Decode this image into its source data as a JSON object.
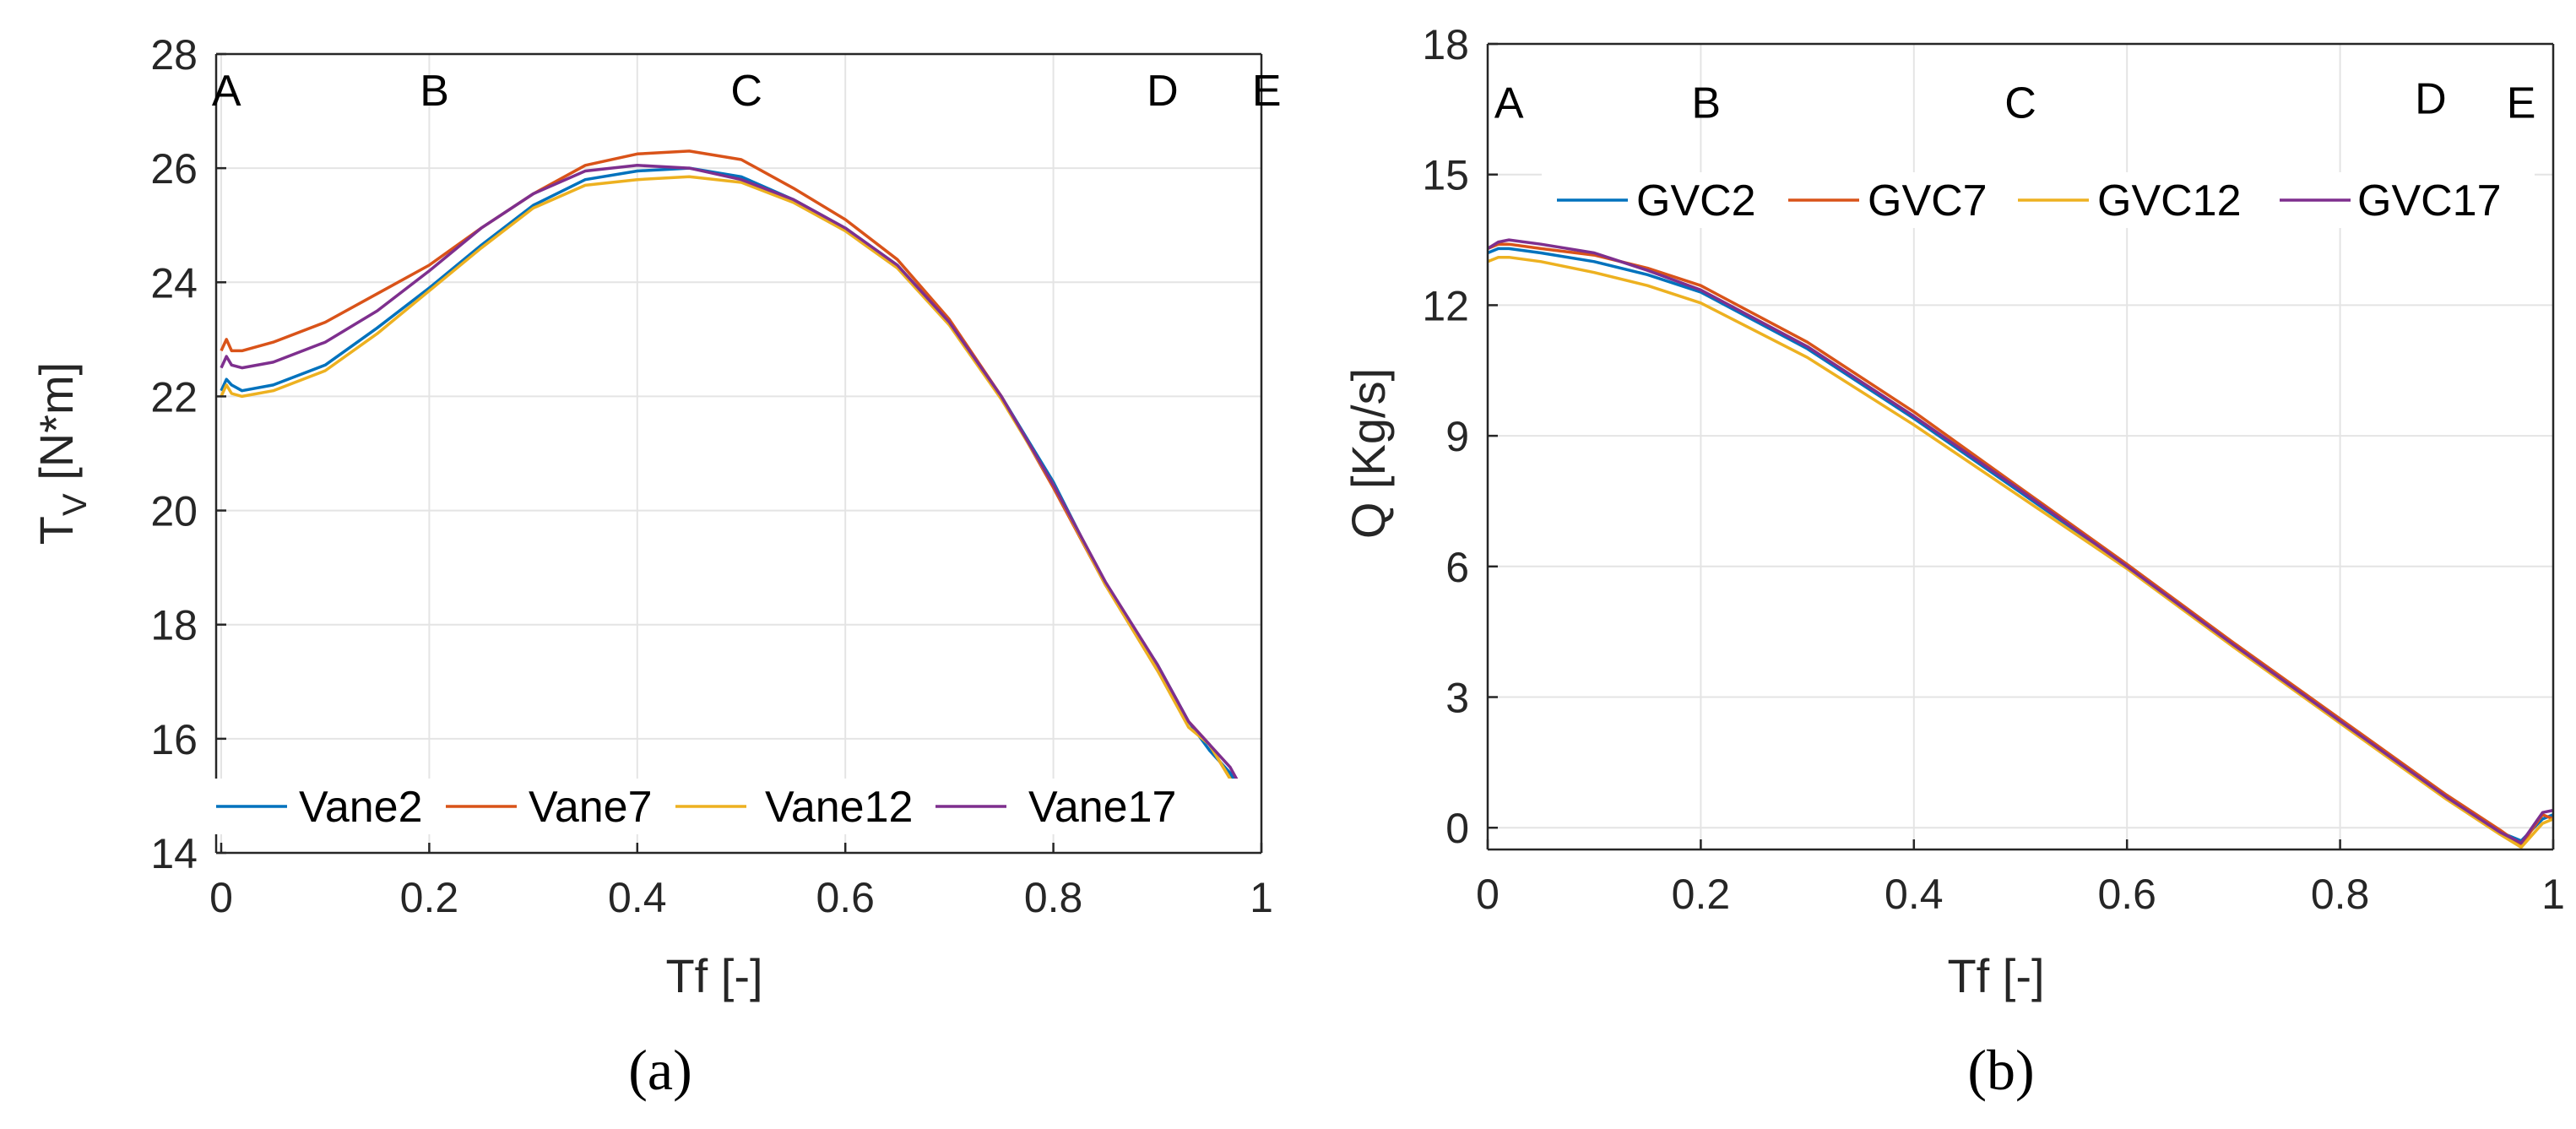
{
  "chart_data": [
    {
      "type": "line",
      "panel_label": "(a)",
      "xlabel": "Tf [-]",
      "ylabel": {
        "main": "T",
        "sub": "V",
        "rest": " [N*m]"
      },
      "xlim": [
        0,
        1
      ],
      "ylim": [
        14,
        28
      ],
      "xticks": [
        0,
        0.2,
        0.4,
        0.6,
        0.8,
        1
      ],
      "xtick_labels": [
        "0",
        "0.2",
        "0.4",
        "0.6",
        "0.8",
        "1"
      ],
      "yticks": [
        14,
        16,
        18,
        20,
        22,
        24,
        26,
        28
      ],
      "ytick_labels": [
        "14",
        "16",
        "18",
        "20",
        "22",
        "24",
        "26",
        "28"
      ],
      "point_labels": [
        {
          "text": "A",
          "x": 0.005,
          "y": 27.1
        },
        {
          "text": "B",
          "x": 0.205,
          "y": 27.1
        },
        {
          "text": "C",
          "x": 0.505,
          "y": 27.1
        },
        {
          "text": "D",
          "x": 0.905,
          "y": 27.1
        },
        {
          "text": "E",
          "x": 1.005,
          "y": 27.1
        }
      ],
      "legend_position": "bottom",
      "series": [
        {
          "name": "Vane2",
          "color": "#0072BD",
          "x": [
            0.0,
            0.005,
            0.01,
            0.02,
            0.05,
            0.1,
            0.15,
            0.2,
            0.25,
            0.3,
            0.35,
            0.4,
            0.45,
            0.5,
            0.55,
            0.6,
            0.65,
            0.7,
            0.75,
            0.8,
            0.85,
            0.9,
            0.93,
            0.95,
            0.97,
            0.985
          ],
          "y": [
            22.1,
            22.3,
            22.2,
            22.1,
            22.2,
            22.55,
            23.2,
            23.9,
            24.65,
            25.35,
            25.8,
            25.95,
            26.0,
            25.85,
            25.45,
            24.95,
            24.3,
            23.3,
            22.0,
            20.5,
            18.7,
            17.3,
            16.3,
            15.8,
            15.4,
            14.9
          ]
        },
        {
          "name": "Vane7",
          "color": "#D95319",
          "x": [
            0.0,
            0.005,
            0.01,
            0.02,
            0.05,
            0.1,
            0.15,
            0.2,
            0.25,
            0.3,
            0.35,
            0.4,
            0.45,
            0.5,
            0.55,
            0.6,
            0.65,
            0.7,
            0.75,
            0.8,
            0.85,
            0.9,
            0.93,
            0.95,
            0.97,
            0.985
          ],
          "y": [
            22.8,
            23.0,
            22.8,
            22.8,
            22.95,
            23.3,
            23.8,
            24.3,
            24.95,
            25.55,
            26.05,
            26.25,
            26.3,
            26.15,
            25.65,
            25.1,
            24.4,
            23.35,
            22.0,
            20.4,
            18.7,
            17.2,
            16.3,
            15.9,
            15.3,
            14.8
          ]
        },
        {
          "name": "Vane12",
          "color": "#EDB120",
          "x": [
            0.0,
            0.005,
            0.01,
            0.02,
            0.05,
            0.1,
            0.15,
            0.2,
            0.25,
            0.3,
            0.35,
            0.4,
            0.45,
            0.5,
            0.55,
            0.6,
            0.65,
            0.7,
            0.75,
            0.8,
            0.85,
            0.9,
            0.93,
            0.95,
            0.97,
            0.985
          ],
          "y": [
            22.0,
            22.2,
            22.05,
            22.0,
            22.1,
            22.45,
            23.1,
            23.85,
            24.6,
            25.3,
            25.7,
            25.8,
            25.85,
            25.75,
            25.4,
            24.9,
            24.25,
            23.25,
            21.95,
            20.45,
            18.7,
            17.2,
            16.2,
            15.9,
            15.3,
            14.7
          ]
        },
        {
          "name": "Vane17",
          "color": "#7E2F8E",
          "x": [
            0.0,
            0.005,
            0.01,
            0.02,
            0.05,
            0.1,
            0.15,
            0.2,
            0.25,
            0.3,
            0.35,
            0.4,
            0.45,
            0.5,
            0.55,
            0.6,
            0.65,
            0.7,
            0.75,
            0.8,
            0.85,
            0.9,
            0.93,
            0.95,
            0.97,
            0.985
          ],
          "y": [
            22.5,
            22.7,
            22.55,
            22.5,
            22.6,
            22.95,
            23.5,
            24.2,
            24.95,
            25.55,
            25.95,
            26.05,
            26.0,
            25.8,
            25.45,
            24.95,
            24.3,
            23.3,
            22.0,
            20.45,
            18.75,
            17.3,
            16.3,
            15.9,
            15.5,
            15.0
          ]
        }
      ]
    },
    {
      "type": "line",
      "panel_label": "(b)",
      "xlabel": "Tf [-]",
      "ylabel": {
        "main": "Q [Kg/s]",
        "sub": "",
        "rest": ""
      },
      "xlim": [
        0,
        1
      ],
      "ylim": [
        -0.5,
        18
      ],
      "xticks": [
        0,
        0.2,
        0.4,
        0.6,
        0.8,
        1
      ],
      "xtick_labels": [
        "0",
        "0.2",
        "0.4",
        "0.6",
        "0.8",
        "1"
      ],
      "yticks": [
        0,
        3,
        6,
        9,
        12,
        15,
        18
      ],
      "ytick_labels": [
        "0",
        "3",
        "6",
        "9",
        "12",
        "15",
        "18"
      ],
      "point_labels": [
        {
          "text": "A",
          "x": 0.02,
          "y": 16.3
        },
        {
          "text": "B",
          "x": 0.205,
          "y": 16.3
        },
        {
          "text": "C",
          "x": 0.5,
          "y": 16.3
        },
        {
          "text": "D",
          "x": 0.885,
          "y": 16.4
        },
        {
          "text": "E",
          "x": 0.97,
          "y": 16.3
        }
      ],
      "legend_position": "top",
      "series": [
        {
          "name": "GVC2",
          "color": "#0072BD",
          "x": [
            0.0,
            0.01,
            0.02,
            0.05,
            0.1,
            0.15,
            0.2,
            0.3,
            0.4,
            0.5,
            0.6,
            0.7,
            0.8,
            0.9,
            0.95,
            0.97,
            0.99,
            1.0
          ],
          "y": [
            13.2,
            13.3,
            13.3,
            13.2,
            13.0,
            12.7,
            12.3,
            11.0,
            9.4,
            7.7,
            6.0,
            4.2,
            2.45,
            0.7,
            -0.1,
            -0.3,
            0.2,
            0.3
          ]
        },
        {
          "name": "GVC7",
          "color": "#D95319",
          "x": [
            0.0,
            0.01,
            0.02,
            0.05,
            0.1,
            0.15,
            0.2,
            0.3,
            0.4,
            0.5,
            0.6,
            0.7,
            0.8,
            0.9,
            0.95,
            0.97,
            0.99,
            1.0
          ],
          "y": [
            13.3,
            13.4,
            13.4,
            13.3,
            13.15,
            12.85,
            12.45,
            11.15,
            9.55,
            7.8,
            6.05,
            4.25,
            2.5,
            0.75,
            -0.05,
            -0.4,
            0.3,
            0.2
          ]
        },
        {
          "name": "GVC12",
          "color": "#EDB120",
          "x": [
            0.0,
            0.01,
            0.02,
            0.05,
            0.1,
            0.15,
            0.2,
            0.3,
            0.4,
            0.5,
            0.6,
            0.7,
            0.8,
            0.9,
            0.95,
            0.97,
            0.99,
            1.0
          ],
          "y": [
            13.0,
            13.1,
            13.1,
            13.0,
            12.75,
            12.45,
            12.05,
            10.8,
            9.25,
            7.6,
            5.95,
            4.15,
            2.4,
            0.65,
            -0.15,
            -0.45,
            0.1,
            0.2
          ]
        },
        {
          "name": "GVC17",
          "color": "#7E2F8E",
          "x": [
            0.0,
            0.01,
            0.02,
            0.05,
            0.1,
            0.15,
            0.2,
            0.3,
            0.4,
            0.5,
            0.6,
            0.7,
            0.8,
            0.9,
            0.95,
            0.97,
            0.99,
            1.0
          ],
          "y": [
            13.3,
            13.45,
            13.5,
            13.4,
            13.2,
            12.8,
            12.35,
            11.05,
            9.45,
            7.75,
            6.0,
            4.2,
            2.45,
            0.7,
            -0.1,
            -0.35,
            0.35,
            0.4
          ]
        }
      ]
    }
  ]
}
